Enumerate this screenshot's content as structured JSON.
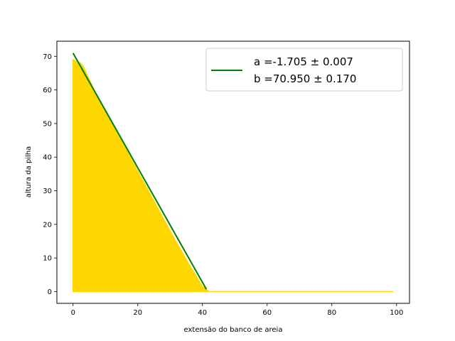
{
  "chart_data": {
    "type": "area",
    "xlabel": "extensão do banco de areia",
    "ylabel": "altura da pilha",
    "xlim": [
      -5,
      104
    ],
    "ylim": [
      -3.5,
      74.5
    ],
    "xticks": [
      0,
      20,
      40,
      60,
      80,
      100
    ],
    "yticks": [
      0,
      10,
      20,
      30,
      40,
      50,
      60,
      70
    ],
    "grid": false,
    "legend_position": "top-right",
    "series": [
      {
        "kind": "area",
        "color": "#ffd700",
        "x": [
          0,
          1,
          2,
          3,
          4,
          6,
          8,
          10,
          15,
          20,
          25,
          30,
          35,
          40,
          41,
          42,
          50,
          60,
          70,
          80,
          90,
          99
        ],
        "values": [
          69,
          68.5,
          68.2,
          67.3,
          65.3,
          61.0,
          57.2,
          53.6,
          44.8,
          35.8,
          27.0,
          18.0,
          9.5,
          1.5,
          0.8,
          0,
          0,
          0,
          0,
          0,
          0,
          0
        ]
      },
      {
        "kind": "line",
        "color": "#008000",
        "slope": -1.705,
        "intercept": 70.95,
        "x_range": [
          0,
          41.2
        ]
      }
    ],
    "legend": {
      "line1": "a =-1.705 ± 0.007",
      "line2": "b =70.950 ± 0.170"
    }
  }
}
